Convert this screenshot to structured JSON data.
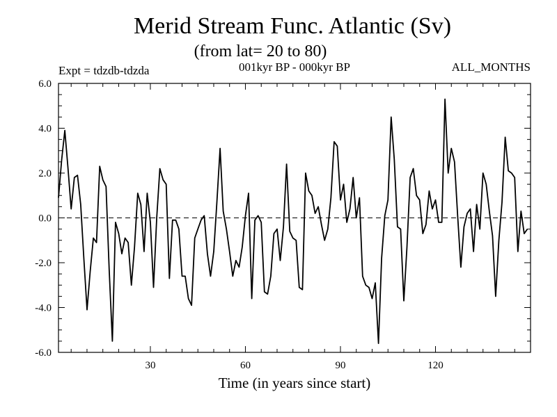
{
  "chart_data": {
    "type": "line",
    "title": "Merid Stream Func. Atlantic (Sv)",
    "subtitle": "(from lat= 20 to 80)",
    "experiment_label": "Expt = tdzdb-tdzda",
    "period_label": "001kyr BP - 000kyr BP",
    "season_label": "ALL_MONTHS",
    "xlabel": "Time (in years since start)",
    "ylabel": "",
    "xlim": [
      1,
      150
    ],
    "ylim": [
      -6,
      6
    ],
    "x_ticks": [
      30,
      60,
      90,
      120
    ],
    "x_tick_labels": [
      "30",
      "60",
      "90",
      "120"
    ],
    "y_ticks": [
      -6,
      -4,
      -2,
      0,
      2,
      4,
      6
    ],
    "y_tick_labels": [
      "-6.0",
      "-4.0",
      "-2.0",
      "0.0",
      "2.0",
      "4.0",
      "6.0"
    ],
    "zero_line": true,
    "series": [
      {
        "name": "Merid Stream Func. Atlantic",
        "x_start": 1,
        "x_step": 1,
        "values": [
          0.9,
          2.6,
          3.9,
          2.2,
          0.4,
          1.8,
          1.9,
          0.6,
          -1.8,
          -4.1,
          -2.4,
          -0.9,
          -1.1,
          2.3,
          1.7,
          1.4,
          -2.3,
          -5.5,
          -0.2,
          -0.7,
          -1.6,
          -0.9,
          -1.1,
          -3.0,
          -1.3,
          1.1,
          0.6,
          -1.5,
          1.1,
          -0.2,
          -3.1,
          0.0,
          2.2,
          1.7,
          1.5,
          -2.7,
          -0.1,
          -0.1,
          -0.5,
          -2.6,
          -2.6,
          -3.6,
          -3.9,
          -0.9,
          -0.5,
          -0.1,
          0.1,
          -1.6,
          -2.6,
          -1.5,
          0.7,
          3.1,
          0.3,
          -0.5,
          -1.5,
          -2.6,
          -1.9,
          -2.2,
          -1.3,
          0.1,
          1.1,
          -3.6,
          -0.1,
          0.1,
          -0.2,
          -3.3,
          -3.4,
          -2.6,
          -0.7,
          -0.5,
          -1.9,
          -0.4,
          2.4,
          -0.6,
          -0.9,
          -1.0,
          -3.1,
          -3.2,
          2.0,
          1.2,
          1.0,
          0.2,
          0.5,
          -0.3,
          -1.0,
          -0.5,
          0.9,
          3.4,
          3.2,
          0.8,
          1.5,
          -0.2,
          0.4,
          1.8,
          0.0,
          0.9,
          -2.6,
          -3.0,
          -3.1,
          -3.6,
          -2.9,
          -5.6,
          -1.8,
          0.1,
          0.8,
          4.5,
          2.6,
          -0.4,
          -0.5,
          -3.7,
          -1.3,
          1.8,
          2.2,
          1.0,
          0.8,
          -0.7,
          -0.3,
          1.2,
          0.4,
          0.8,
          -0.2,
          -0.2,
          5.3,
          2.0,
          3.1,
          2.5,
          0.1,
          -2.2,
          -0.4,
          0.2,
          0.4,
          -1.5,
          0.6,
          -0.5,
          2.0,
          1.5,
          0.3,
          -0.8,
          -3.5,
          -1.0,
          0.7,
          3.6,
          2.1,
          2.0,
          1.8,
          -1.5,
          0.3,
          -0.7,
          -0.5
        ]
      }
    ]
  }
}
